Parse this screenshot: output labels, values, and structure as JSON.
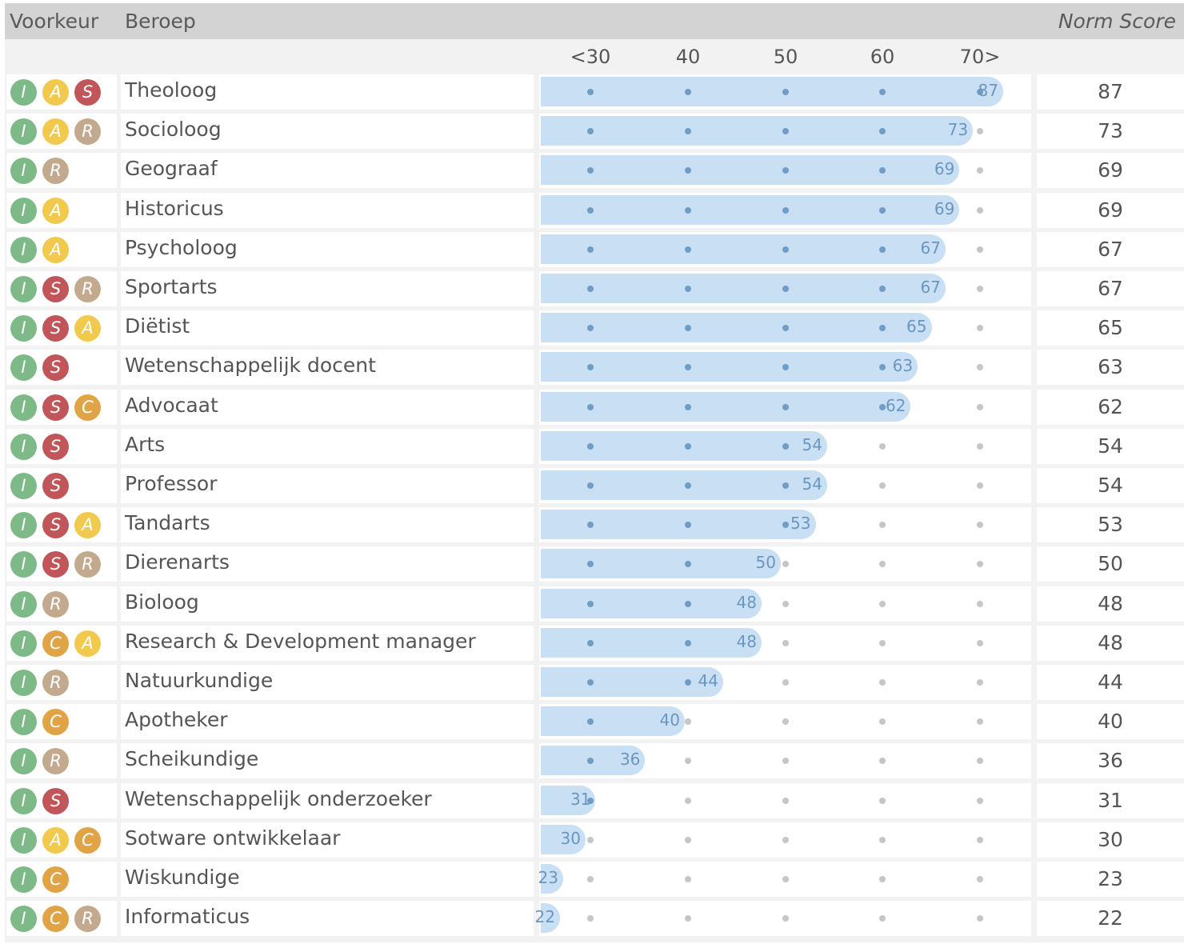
{
  "header": {
    "preference": "Voorkeur",
    "occupation": "Beroep",
    "norm_score": "Norm Score"
  },
  "scale": {
    "ticks": [
      "<30",
      "40",
      "50",
      "60",
      "70>"
    ]
  },
  "letter_colors": {
    "I": "#7dba88",
    "A": "#f1c94c",
    "S": "#c0555a",
    "R": "#c3aa8e",
    "C": "#e0a346"
  },
  "rows": [
    {
      "letters": [
        "I",
        "A",
        "S"
      ],
      "occupation": "Theoloog",
      "score": "87"
    },
    {
      "letters": [
        "I",
        "A",
        "R"
      ],
      "occupation": "Socioloog",
      "score": "73"
    },
    {
      "letters": [
        "I",
        "R"
      ],
      "occupation": "Geograaf",
      "score": "69"
    },
    {
      "letters": [
        "I",
        "A"
      ],
      "occupation": "Historicus",
      "score": "69"
    },
    {
      "letters": [
        "I",
        "A"
      ],
      "occupation": "Psycholoog",
      "score": "67"
    },
    {
      "letters": [
        "I",
        "S",
        "R"
      ],
      "occupation": "Sportarts",
      "score": "67"
    },
    {
      "letters": [
        "I",
        "S",
        "A"
      ],
      "occupation": "Diëtist",
      "score": "65"
    },
    {
      "letters": [
        "I",
        "S"
      ],
      "occupation": "Wetenschappelijk docent",
      "score": "63"
    },
    {
      "letters": [
        "I",
        "S",
        "C"
      ],
      "occupation": "Advocaat",
      "score": "62"
    },
    {
      "letters": [
        "I",
        "S"
      ],
      "occupation": "Arts",
      "score": "54"
    },
    {
      "letters": [
        "I",
        "S"
      ],
      "occupation": "Professor",
      "score": "54"
    },
    {
      "letters": [
        "I",
        "S",
        "A"
      ],
      "occupation": "Tandarts",
      "score": "53"
    },
    {
      "letters": [
        "I",
        "S",
        "R"
      ],
      "occupation": "Dierenarts",
      "score": "50"
    },
    {
      "letters": [
        "I",
        "R"
      ],
      "occupation": "Bioloog",
      "score": "48"
    },
    {
      "letters": [
        "I",
        "C",
        "A"
      ],
      "occupation": "Research & Development manager",
      "score": "48"
    },
    {
      "letters": [
        "I",
        "R"
      ],
      "occupation": "Natuurkundige",
      "score": "44"
    },
    {
      "letters": [
        "I",
        "C"
      ],
      "occupation": "Apotheker",
      "score": "40"
    },
    {
      "letters": [
        "I",
        "R"
      ],
      "occupation": "Scheikundige",
      "score": "36"
    },
    {
      "letters": [
        "I",
        "S"
      ],
      "occupation": "Wetenschappelijk onderzoeker",
      "score": "31"
    },
    {
      "letters": [
        "I",
        "A",
        "C"
      ],
      "occupation": "Sotware ontwikkelaar",
      "score": "30"
    },
    {
      "letters": [
        "I",
        "C"
      ],
      "occupation": "Wiskundige",
      "score": "23"
    },
    {
      "letters": [
        "I",
        "C",
        "R"
      ],
      "occupation": "Informaticus",
      "score": "22"
    }
  ]
}
